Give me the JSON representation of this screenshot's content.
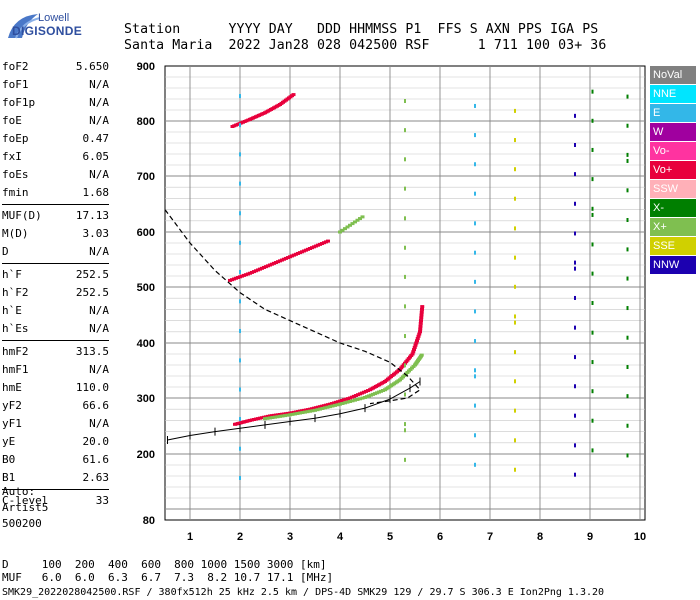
{
  "logo": {
    "line1": "Lowell",
    "line2": "DIGISONDE"
  },
  "header": {
    "row1": "Station      YYYY DAY   DDD HHMMSS P1  FFS S AXN PPS IGA PS",
    "row2": "Santa Maria  2022 Jan28 028 042500 RSF      1 711 100 03+ 36"
  },
  "params": [
    {
      "label": "foF2",
      "value": "5.650"
    },
    {
      "label": "foF1",
      "value": "N/A"
    },
    {
      "label": "foF1p",
      "value": "N/A"
    },
    {
      "label": "foE",
      "value": "N/A"
    },
    {
      "label": "foEp",
      "value": "0.47"
    },
    {
      "label": "fxI",
      "value": "6.05"
    },
    {
      "label": "foEs",
      "value": "N/A"
    },
    {
      "label": "fmin",
      "value": "1.68"
    },
    {
      "label": "MUF(D)",
      "value": "17.13"
    },
    {
      "label": "M(D)",
      "value": "3.03"
    },
    {
      "label": "D",
      "value": "N/A"
    },
    {
      "label": "h`F",
      "value": "252.5"
    },
    {
      "label": "h`F2",
      "value": "252.5"
    },
    {
      "label": "h`E",
      "value": "N/A"
    },
    {
      "label": "h`Es",
      "value": "N/A"
    },
    {
      "label": "hmF2",
      "value": "313.5"
    },
    {
      "label": "hmF1",
      "value": "N/A"
    },
    {
      "label": "hmE",
      "value": "110.0"
    },
    {
      "label": "yF2",
      "value": "66.6"
    },
    {
      "label": "yF1",
      "value": "N/A"
    },
    {
      "label": "yE",
      "value": "20.0"
    },
    {
      "label": "B0",
      "value": "61.6"
    },
    {
      "label": "B1",
      "value": "2.63"
    },
    {
      "label": "C-level",
      "value": "33"
    }
  ],
  "auto": {
    "line1": "Auto:",
    "line2": "Artist5",
    "line3": "500200"
  },
  "legend": [
    {
      "label": "NoVal",
      "color": "#808080"
    },
    {
      "label": "NNE",
      "color": "#00e5ff"
    },
    {
      "label": "E",
      "color": "#33b7e8"
    },
    {
      "label": "W",
      "color": "#a0009f"
    },
    {
      "label": "Vo-",
      "color": "#ff33a0"
    },
    {
      "label": "Vo+",
      "color": "#e8003c"
    },
    {
      "label": "SSW",
      "color": "#ffb0b8"
    },
    {
      "label": "X-",
      "color": "#007f00"
    },
    {
      "label": "X+",
      "color": "#7fbf50"
    },
    {
      "label": "SSE",
      "color": "#d0d000"
    },
    {
      "label": "NNW",
      "color": "#1c00b0"
    }
  ],
  "footer": {
    "line1": "D     100  200  400  600  800 1000 1500 3000 [km]",
    "line2": "MUF   6.0  6.0  6.3  6.7  7.3  8.2 10.7 17.1 [MHz]",
    "line3": "SMK29_2022028042500.RSF / 380fx512h 25 kHz 2.5 km / DPS-4D SMK29 129 / 29.7 S 306.3 E Ion2Png 1.3.20"
  },
  "chart_data": {
    "type": "scatter",
    "title": "",
    "xlabel": "",
    "ylabel": "",
    "xlim": [
      0.5,
      10.1
    ],
    "ylim": [
      80,
      900
    ],
    "xticks": [
      1,
      2,
      3,
      4,
      5,
      6,
      7,
      8,
      9,
      10
    ],
    "yticks": [
      80,
      200,
      300,
      400,
      500,
      600,
      700,
      800,
      900
    ],
    "series": [
      {
        "name": "Vo+",
        "color": "#e8003c",
        "points": [
          [
            1.9,
            253
          ],
          [
            2.2,
            260
          ],
          [
            2.6,
            268
          ],
          [
            3.0,
            273
          ],
          [
            3.4,
            280
          ],
          [
            3.8,
            289
          ],
          [
            4.2,
            300
          ],
          [
            4.6,
            315
          ],
          [
            4.9,
            330
          ],
          [
            5.2,
            352
          ],
          [
            5.45,
            380
          ],
          [
            5.6,
            420
          ],
          [
            5.65,
            470
          ]
        ]
      },
      {
        "name": "Vo+",
        "color": "#e8003c",
        "points": [
          [
            1.8,
            512
          ],
          [
            2.2,
            525
          ],
          [
            2.6,
            540
          ],
          [
            3.0,
            555
          ],
          [
            3.4,
            570
          ],
          [
            3.8,
            585
          ]
        ]
      },
      {
        "name": "X+",
        "color": "#7fbf50",
        "points": [
          [
            2.5,
            263
          ],
          [
            3.0,
            270
          ],
          [
            3.5,
            278
          ],
          [
            4.0,
            289
          ],
          [
            4.5,
            301
          ],
          [
            4.9,
            315
          ],
          [
            5.2,
            333
          ],
          [
            5.5,
            360
          ],
          [
            5.65,
            380
          ]
        ]
      },
      {
        "name": "X+",
        "color": "#7fbf50",
        "points": [
          [
            4.0,
            600
          ],
          [
            4.5,
            630
          ]
        ]
      },
      {
        "name": "Vo+",
        "color": "#e8003c",
        "points": [
          [
            1.85,
            790
          ],
          [
            2.2,
            803
          ],
          [
            2.5,
            815
          ],
          [
            2.8,
            830
          ],
          [
            3.1,
            850
          ]
        ]
      }
    ],
    "profile_true_height": [
      [
        0.55,
        225
      ],
      [
        1.0,
        233
      ],
      [
        1.5,
        240
      ],
      [
        2.0,
        246
      ],
      [
        2.5,
        252
      ],
      [
        3.0,
        258
      ],
      [
        3.5,
        264
      ],
      [
        4.0,
        272
      ],
      [
        4.5,
        282
      ],
      [
        5.0,
        298
      ],
      [
        5.4,
        318
      ],
      [
        5.6,
        330
      ]
    ],
    "profile_dashed": [
      [
        0.5,
        640
      ],
      [
        1.0,
        580
      ],
      [
        1.5,
        530
      ],
      [
        2.0,
        490
      ],
      [
        2.5,
        460
      ],
      [
        3.0,
        440
      ],
      [
        3.5,
        420
      ],
      [
        4.0,
        400
      ],
      [
        4.5,
        385
      ],
      [
        5.0,
        365
      ],
      [
        5.35,
        340
      ],
      [
        5.6,
        315
      ],
      [
        5.35,
        300
      ],
      [
        5.0,
        295
      ],
      [
        4.6,
        290
      ]
    ]
  }
}
